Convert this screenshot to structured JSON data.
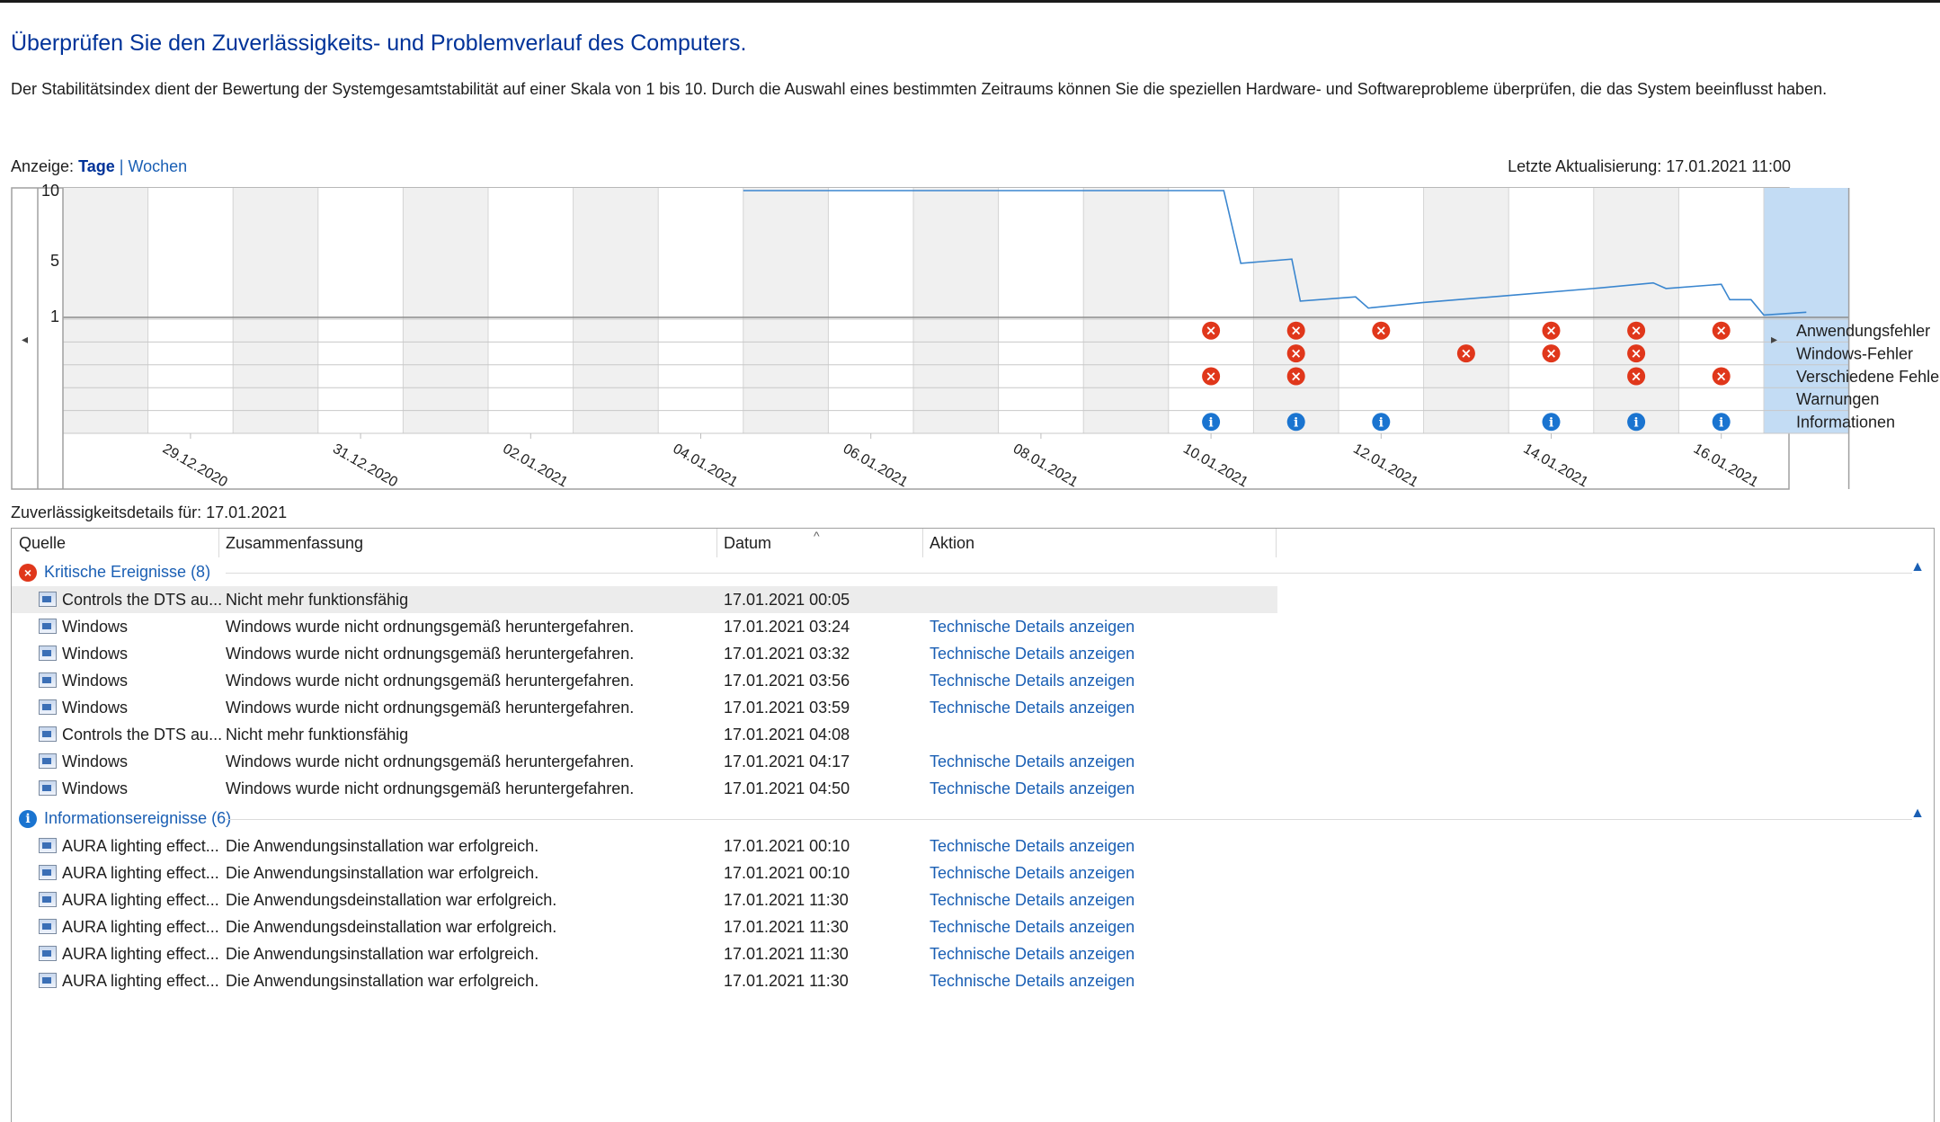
{
  "window": {
    "title": "Überprüfen Sie den Zuverlässigkeits- und Problemverlauf des Computers.",
    "description": "Der Stabilitätsindex dient der Bewertung der Systemgesamtstabilität auf einer Skala von 1 bis 10. Durch die Auswahl eines bestimmten Zeitraums können Sie die speziellen Hardware- und Softwareprobleme überprüfen, die das System beeinflusst haben."
  },
  "view": {
    "label": "Anzeige:",
    "days": "Tage",
    "separator": "|",
    "weeks": "Wochen",
    "last_update": "Letzte Aktualisierung: 17.01.2021 11:00"
  },
  "chart_data": {
    "type": "line",
    "title": "",
    "y_ticks": [
      "10",
      "5",
      "1"
    ],
    "ylim": [
      1,
      10
    ],
    "x_tick_labels": [
      "29.12.2020",
      "31.12.2020",
      "02.01.2021",
      "04.01.2021",
      "06.01.2021",
      "08.01.2021",
      "10.01.2021",
      "12.01.2021",
      "14.01.2021",
      "16.01.2021"
    ],
    "dates": [
      "28.12.2020",
      "29.12.2020",
      "30.12.2020",
      "31.12.2020",
      "01.01.2021",
      "02.01.2021",
      "03.01.2021",
      "04.01.2021",
      "05.01.2021",
      "06.01.2021",
      "07.01.2021",
      "08.01.2021",
      "09.01.2021",
      "10.01.2021",
      "11.01.2021",
      "12.01.2021",
      "13.01.2021",
      "14.01.2021",
      "15.01.2021",
      "16.01.2021",
      "17.01.2021"
    ],
    "selected_date": "17.01.2021",
    "stability_index": [
      [
        8.0,
        10
      ],
      [
        9.0,
        10
      ],
      [
        10.0,
        10
      ],
      [
        11.0,
        10
      ],
      [
        12.0,
        10
      ],
      [
        13.0,
        10
      ],
      [
        13.65,
        10
      ],
      [
        13.85,
        4.8
      ],
      [
        14.45,
        5.1
      ],
      [
        14.55,
        2.1
      ],
      [
        15.2,
        2.4
      ],
      [
        15.35,
        1.6
      ],
      [
        16.0,
        2.0
      ],
      [
        17.0,
        2.5
      ],
      [
        18.0,
        3.0
      ],
      [
        18.7,
        3.4
      ],
      [
        18.85,
        3.0
      ],
      [
        19.5,
        3.3
      ],
      [
        19.6,
        2.2
      ],
      [
        19.85,
        2.2
      ],
      [
        20.0,
        1.1
      ],
      [
        20.5,
        1.3
      ]
    ],
    "categories": [
      "Anwendungsfehler",
      "Windows-Fehler",
      "Verschiedene Fehler",
      "Warnungen",
      "Informationen"
    ],
    "events": {
      "Anwendungsfehler": [
        13,
        14,
        15,
        17,
        18,
        19
      ],
      "Windows-Fehler": [
        14,
        16,
        17,
        18
      ],
      "Verschiedene Fehler": [
        13,
        14,
        18,
        19
      ],
      "Warnungen": [],
      "Informationen": [
        13,
        14,
        15,
        17,
        18,
        19
      ]
    }
  },
  "details": {
    "label": "Zuverlässigkeitsdetails für: 17.01.2021"
  },
  "table": {
    "columns": [
      "Quelle",
      "Zusammenfassung",
      "Datum",
      "Aktion"
    ],
    "groups": [
      {
        "label": "Kritische Ereignisse (8)",
        "icon": "error-icon",
        "rows": [
          {
            "source": "Controls the DTS au...",
            "summary": "Nicht mehr funktionsfähig",
            "date": "17.01.2021 00:05",
            "action": ""
          },
          {
            "source": "Windows",
            "summary": "Windows wurde nicht ordnungsgemäß heruntergefahren.",
            "date": "17.01.2021 03:24",
            "action": "Technische Details anzeigen"
          },
          {
            "source": "Windows",
            "summary": "Windows wurde nicht ordnungsgemäß heruntergefahren.",
            "date": "17.01.2021 03:32",
            "action": "Technische Details anzeigen"
          },
          {
            "source": "Windows",
            "summary": "Windows wurde nicht ordnungsgemäß heruntergefahren.",
            "date": "17.01.2021 03:56",
            "action": "Technische Details anzeigen"
          },
          {
            "source": "Windows",
            "summary": "Windows wurde nicht ordnungsgemäß heruntergefahren.",
            "date": "17.01.2021 03:59",
            "action": "Technische Details anzeigen"
          },
          {
            "source": "Controls the DTS au...",
            "summary": "Nicht mehr funktionsfähig",
            "date": "17.01.2021 04:08",
            "action": ""
          },
          {
            "source": "Windows",
            "summary": "Windows wurde nicht ordnungsgemäß heruntergefahren.",
            "date": "17.01.2021 04:17",
            "action": "Technische Details anzeigen"
          },
          {
            "source": "Windows",
            "summary": "Windows wurde nicht ordnungsgemäß heruntergefahren.",
            "date": "17.01.2021 04:50",
            "action": "Technische Details anzeigen"
          }
        ]
      },
      {
        "label": "Informationsereignisse (6)",
        "icon": "info-icon",
        "rows": [
          {
            "source": "AURA lighting effect...",
            "summary": "Die Anwendungsinstallation war erfolgreich.",
            "date": "17.01.2021 00:10",
            "action": "Technische Details anzeigen"
          },
          {
            "source": "AURA lighting effect...",
            "summary": "Die Anwendungsinstallation war erfolgreich.",
            "date": "17.01.2021 00:10",
            "action": "Technische Details anzeigen"
          },
          {
            "source": "AURA lighting effect...",
            "summary": "Die Anwendungsdeinstallation war erfolgreich.",
            "date": "17.01.2021 11:30",
            "action": "Technische Details anzeigen"
          },
          {
            "source": "AURA lighting effect...",
            "summary": "Die Anwendungsdeinstallation war erfolgreich.",
            "date": "17.01.2021 11:30",
            "action": "Technische Details anzeigen"
          },
          {
            "source": "AURA lighting effect...",
            "summary": "Die Anwendungsinstallation war erfolgreich.",
            "date": "17.01.2021 11:30",
            "action": "Technische Details anzeigen"
          },
          {
            "source": "AURA lighting effect...",
            "summary": "Die Anwendungsinstallation war erfolgreich.",
            "date": "17.01.2021 11:30",
            "action": "Technische Details anzeigen"
          }
        ]
      }
    ]
  },
  "colors": {
    "title": "#003399",
    "link": "#1a5fb4",
    "line": "#3a86cf",
    "selected_column": "#c3dcf4",
    "shaded_column": "#f0f0f0",
    "error": "#e0371b",
    "info": "#1a74d0"
  }
}
